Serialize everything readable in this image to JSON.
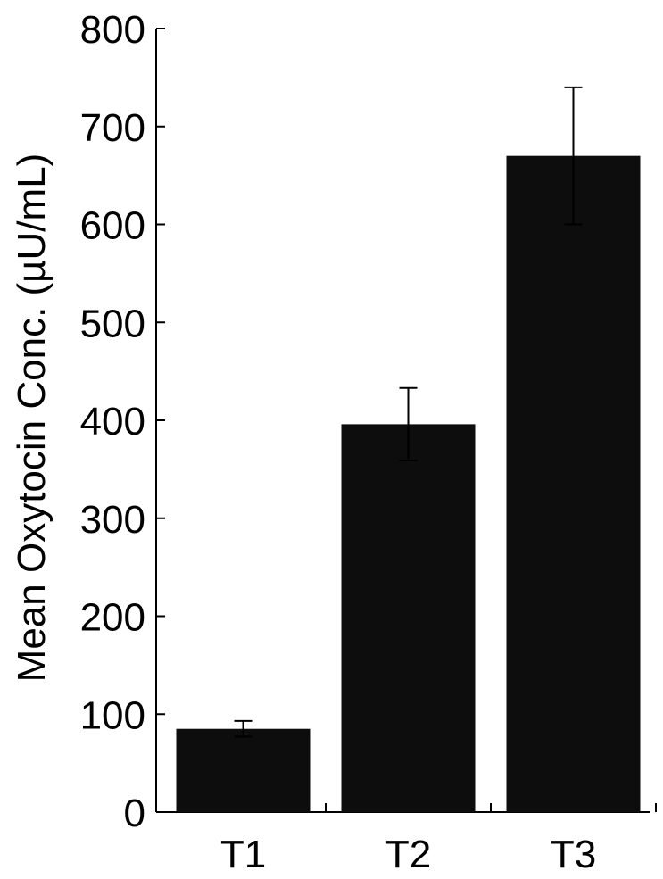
{
  "chart_data": {
    "type": "bar",
    "title": "",
    "xlabel": "",
    "ylabel": "Mean Oxytocin Conc. (µU/mL)",
    "categories": [
      "T1",
      "T2",
      "T3"
    ],
    "values": [
      85,
      396,
      670
    ],
    "error": [
      8,
      37,
      70
    ],
    "ylim": [
      0,
      800
    ],
    "yticks": [
      0,
      100,
      200,
      300,
      400,
      500,
      600,
      700,
      800
    ],
    "grid": false,
    "legend": "none",
    "bar_color": "#0d0d0d",
    "axis_color": "#000000"
  }
}
